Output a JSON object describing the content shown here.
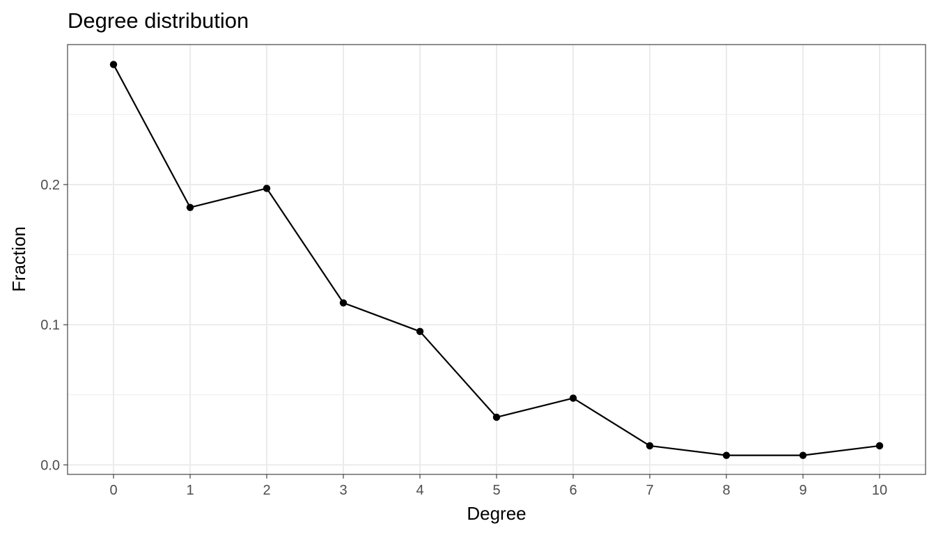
{
  "chart_data": {
    "type": "line",
    "title": "Degree distribution",
    "xlabel": "Degree",
    "ylabel": "Fraction",
    "x": [
      0,
      1,
      2,
      3,
      4,
      5,
      6,
      7,
      8,
      9,
      10
    ],
    "y": [
      0.2857,
      0.1837,
      0.1973,
      0.1156,
      0.0952,
      0.034,
      0.0476,
      0.0136,
      0.0068,
      0.0068,
      0.0136
    ],
    "xlim": [
      -0.6,
      10.6
    ],
    "ylim": [
      -0.0068,
      0.2999
    ],
    "xticks": [
      "0",
      "1",
      "2",
      "3",
      "4",
      "5",
      "6",
      "7",
      "8",
      "9",
      "10"
    ],
    "yticks": [
      {
        "value": 0.0,
        "label": "0.0"
      },
      {
        "value": 0.1,
        "label": "0.1"
      },
      {
        "value": 0.2,
        "label": "0.2"
      }
    ],
    "minor_yticks": [
      0.05,
      0.15,
      0.25
    ],
    "grid": true,
    "line_color": "#000000",
    "point_color": "#000000",
    "grid_color": "#ebebeb",
    "panel_border_color": "#333333"
  }
}
